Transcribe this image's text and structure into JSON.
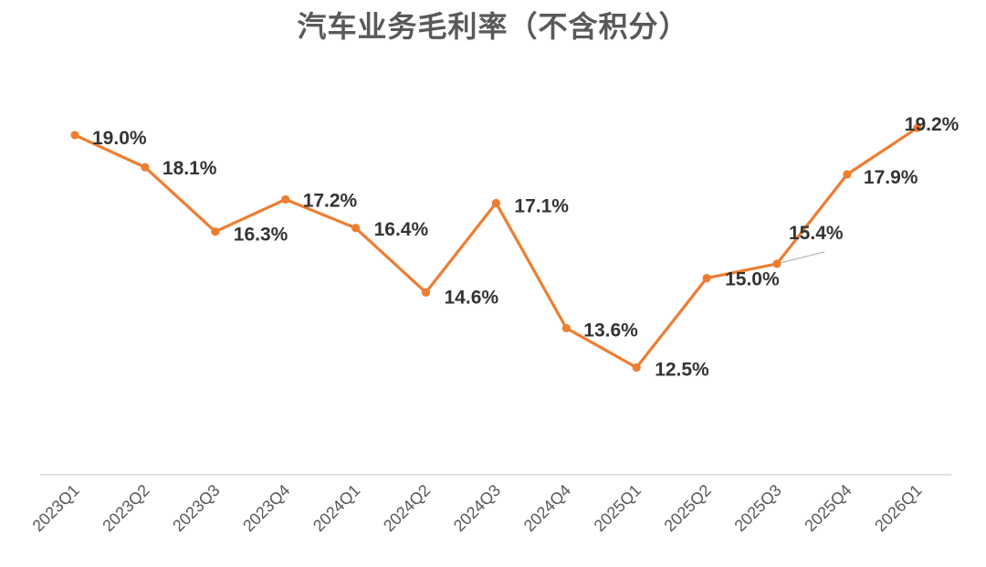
{
  "chart_data": {
    "type": "line",
    "title": "汽车业务毛利率（不含积分）",
    "categories": [
      "2023Q1",
      "2023Q2",
      "2023Q3",
      "2023Q4",
      "2024Q1",
      "2024Q2",
      "2024Q3",
      "2024Q4",
      "2025Q1",
      "2025Q2",
      "2025Q3",
      "2025Q4",
      "2026Q1"
    ],
    "series": [
      {
        "values": [
          19.0,
          18.1,
          16.3,
          17.2,
          16.4,
          14.6,
          17.1,
          13.6,
          12.5,
          15.0,
          15.4,
          17.9,
          19.2
        ],
        "data_labels": [
          "19.0%",
          "18.1%",
          "16.3%",
          "17.2%",
          "16.4%",
          "14.6%",
          "17.1%",
          "13.6%",
          "12.5%",
          "15.0%",
          "15.4%",
          "17.9%",
          "19.2%"
        ],
        "color": "#ED7D31"
      }
    ],
    "ylim": [
      9.5,
      21.5
    ],
    "grid": false,
    "legend": "none",
    "axis_color": "#D9D9D9",
    "label_color": "#333333",
    "tick_color": "#595959"
  }
}
